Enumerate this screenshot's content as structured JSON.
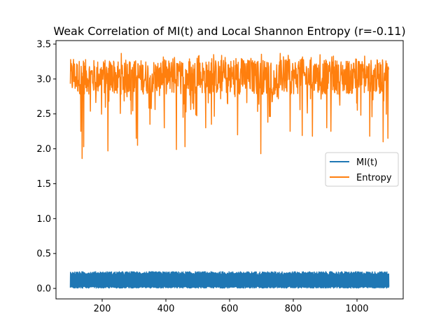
{
  "chart_data": {
    "type": "line",
    "title": "Weak Correlation of MI(t) and Local Shannon Entropy (r=-0.11)",
    "xlabel": "",
    "ylabel": "",
    "xlim": [
      55,
      1145
    ],
    "ylim": [
      -0.15,
      3.55
    ],
    "xticks": [
      200,
      400,
      600,
      800,
      1000
    ],
    "xtick_labels": [
      "200",
      "400",
      "600",
      "800",
      "1000"
    ],
    "yticks": [
      0.0,
      0.5,
      1.0,
      1.5,
      2.0,
      2.5,
      3.0,
      3.5
    ],
    "ytick_labels": [
      "0.0",
      "0.5",
      "1.0",
      "1.5",
      "2.0",
      "2.5",
      "3.0",
      "3.5"
    ],
    "grid": false,
    "legend_position": "center-right",
    "x_range": [
      100,
      1100
    ],
    "series": [
      {
        "name": "MI(t)",
        "color": "#1f77b4",
        "approx_min": 0.0,
        "approx_max": 0.24,
        "occasional_spikes": [
          [
            140,
            0.1
          ],
          [
            435,
            0.24
          ],
          [
            700,
            0.24
          ]
        ]
      },
      {
        "name": "Entropy",
        "color": "#ff7f0e",
        "approx_min": 1.86,
        "approx_max": 3.37,
        "notable_dips": [
          [
            133,
            2.25
          ],
          [
            137,
            1.86
          ],
          [
            142,
            2.03
          ],
          [
            218,
            1.97
          ],
          [
            307,
            2.15
          ],
          [
            311,
            2.05
          ],
          [
            350,
            2.35
          ],
          [
            395,
            2.3
          ],
          [
            433,
            1.99
          ],
          [
            460,
            2.03
          ],
          [
            525,
            2.3
          ],
          [
            543,
            2.35
          ],
          [
            625,
            2.2
          ],
          [
            698,
            1.93
          ],
          [
            720,
            2.38
          ],
          [
            790,
            2.25
          ],
          [
            828,
            2.19
          ],
          [
            860,
            2.18
          ],
          [
            905,
            2.3
          ],
          [
            918,
            2.25
          ],
          [
            1040,
            2.18
          ],
          [
            1082,
            2.1
          ],
          [
            1097,
            2.15
          ]
        ]
      }
    ]
  }
}
